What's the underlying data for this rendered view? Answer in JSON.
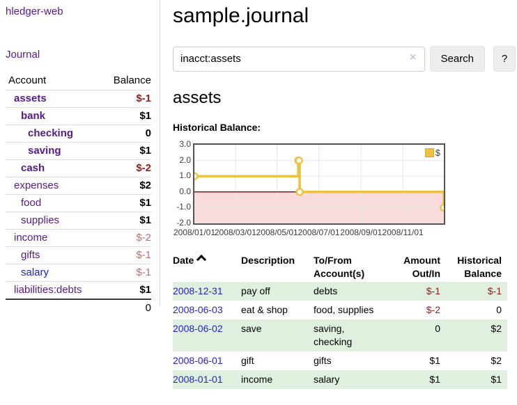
{
  "app": {
    "brand": "hledger-web",
    "nav_journal": "Journal"
  },
  "sidebar": {
    "table": {
      "col_account": "Account",
      "col_balance": "Balance",
      "rows": [
        {
          "account": "assets",
          "balance": "$-1",
          "indent": 0,
          "bold": true,
          "balance_style": "neg"
        },
        {
          "account": "bank",
          "balance": "$1",
          "indent": 1,
          "bold": true,
          "balance_style": "pos"
        },
        {
          "account": "checking",
          "balance": "0",
          "indent": 2,
          "bold": true,
          "balance_style": "pos"
        },
        {
          "account": "saving",
          "balance": "$1",
          "indent": 2,
          "bold": true,
          "balance_style": "pos"
        },
        {
          "account": "cash",
          "balance": "$-2",
          "indent": 1,
          "bold": true,
          "balance_style": "neg"
        },
        {
          "account": "expenses",
          "balance": "$2",
          "indent": 0,
          "bold": false,
          "balance_style": "pos"
        },
        {
          "account": "food",
          "balance": "$1",
          "indent": 1,
          "bold": false,
          "balance_style": "pos"
        },
        {
          "account": "supplies",
          "balance": "$1",
          "indent": 1,
          "bold": false,
          "balance_style": "pos"
        },
        {
          "account": "income",
          "balance": "$-2",
          "indent": 0,
          "bold": false,
          "balance_style": "muted"
        },
        {
          "account": "gifts",
          "balance": "$-1",
          "indent": 1,
          "bold": false,
          "balance_style": "muted"
        },
        {
          "account": "salary",
          "balance": "$-1",
          "indent": 1,
          "bold": false,
          "balance_style": "muted",
          "link_style": "blue"
        },
        {
          "account": "liabilities:debts",
          "balance": "$1",
          "indent": 0,
          "bold": false,
          "balance_style": "pos"
        }
      ],
      "total": "0"
    }
  },
  "header": {
    "title": "sample.journal"
  },
  "search": {
    "value": "inacct:assets",
    "clear_icon": "×",
    "button_label": "Search",
    "help_label": "?"
  },
  "account_page": {
    "heading": "assets",
    "chart_label": "Historical Balance:"
  },
  "chart_data": {
    "type": "line",
    "title": "Historical Balance",
    "step": true,
    "series": [
      {
        "name": "$",
        "color": "#edc240",
        "points": [
          [
            "2008-01-01",
            1
          ],
          [
            "2008-06-01",
            2
          ],
          [
            "2008-06-02",
            2
          ],
          [
            "2008-06-03",
            0
          ],
          [
            "2008-12-31",
            -1
          ]
        ]
      }
    ],
    "x_ticks": [
      "2008/01/01",
      "2008/03/01",
      "2008/05/01",
      "2008/07/01",
      "2008/09/01",
      "2008/11/01"
    ],
    "y_ticks": [
      "3.0",
      "2.0",
      "1.0",
      "0.0",
      "-1.0",
      "-2.0"
    ],
    "ylim": [
      -2,
      3
    ],
    "xlim": [
      "2008-01-01",
      "2008-12-31"
    ],
    "legend": {
      "label": "$",
      "position": "top-right"
    },
    "grid": true,
    "gridline_color": "#e8e8e8",
    "negative_region_color": "#fadbdb",
    "zero_line_color": "#8c1717",
    "marker": {
      "fill": "#ffffff",
      "radius": 4.5
    }
  },
  "register": {
    "headers": {
      "date": "Date",
      "sort_icon": "chevron-up",
      "description": "Description",
      "accounts": "To/From Account(s)",
      "amount": "Amount Out/In",
      "balance": "Historical Balance"
    },
    "rows": [
      {
        "date": "2008-12-31",
        "description": "pay off",
        "accounts": "debts",
        "amount": "$-1",
        "balance": "$-1",
        "shade": true
      },
      {
        "date": "2008-06-03",
        "description": "eat & shop",
        "accounts": "food, supplies",
        "amount": "$-2",
        "balance": "0",
        "shade": false
      },
      {
        "date": "2008-06-02",
        "description": "save",
        "accounts": "saving, checking",
        "amount": "0",
        "balance": "$2",
        "shade": true
      },
      {
        "date": "2008-06-01",
        "description": "gift",
        "accounts": "gifts",
        "amount": "$1",
        "balance": "$2",
        "shade": false
      },
      {
        "date": "2008-01-01",
        "description": "income",
        "accounts": "salary",
        "amount": "$1",
        "balance": "$1",
        "shade": true
      }
    ]
  },
  "colors": {
    "link_purple": "#551a8b",
    "link_blue": "#1a1aee",
    "date_blue": "#2323d0",
    "negative_red": "#9b1c1c",
    "muted_red": "#bf7171",
    "stripe_green": "#dff0df",
    "chart_line": "#edc240"
  }
}
